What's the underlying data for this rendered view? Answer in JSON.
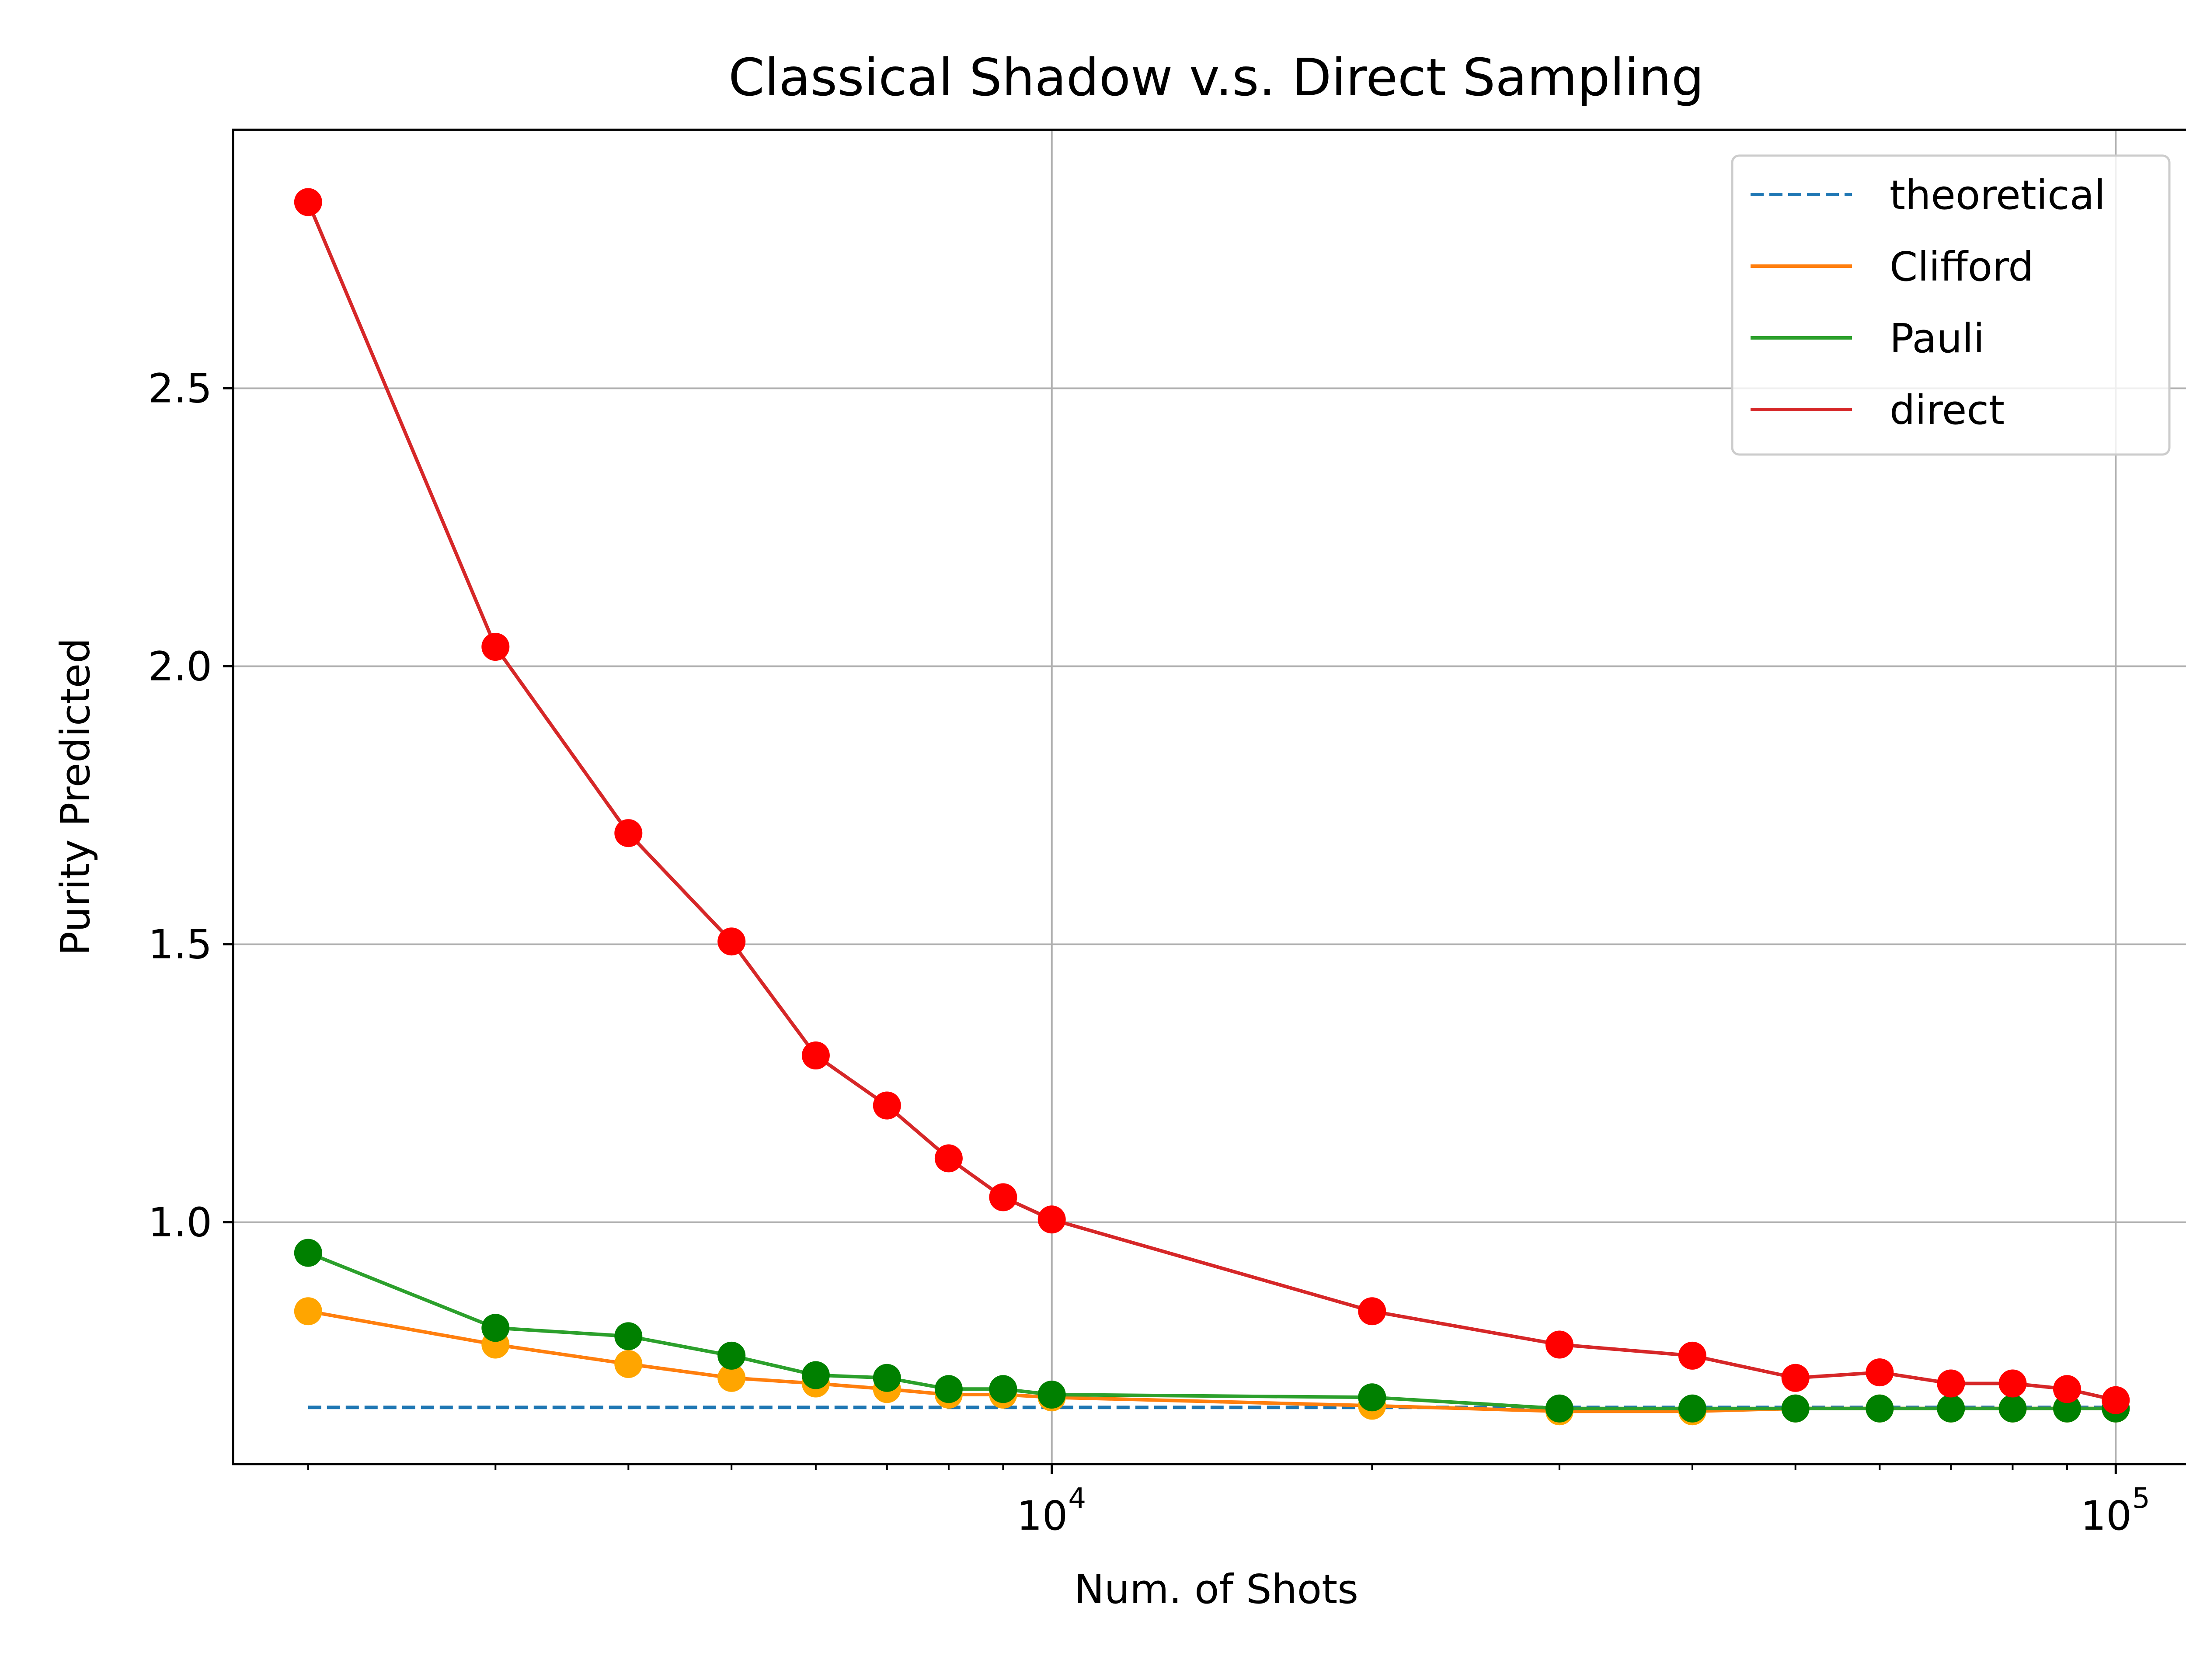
{
  "chart_data": {
    "type": "line",
    "title": "Classical Shadow v.s. Direct Sampling",
    "xlabel": "Num. of Shots",
    "ylabel": "Purity Predicted",
    "x_scale": "log",
    "xlim": [
      1700,
      120000
    ],
    "ylim": [
      0.565,
      2.965
    ],
    "x_major_ticks": [
      {
        "value": 10000,
        "base": "10",
        "exp": "4"
      },
      {
        "value": 100000,
        "base": "10",
        "exp": "5"
      }
    ],
    "x_minor_ticks": [
      2000,
      3000,
      4000,
      5000,
      6000,
      7000,
      8000,
      9000,
      20000,
      30000,
      40000,
      50000,
      60000,
      70000,
      80000,
      90000
    ],
    "y_ticks": [
      {
        "value": 1.0,
        "label": "1.0"
      },
      {
        "value": 1.5,
        "label": "1.5"
      },
      {
        "value": 2.0,
        "label": "2.0"
      },
      {
        "value": 2.5,
        "label": "2.5"
      }
    ],
    "grid": true,
    "legend_position": "top-right",
    "x": [
      2000,
      3000,
      4000,
      5000,
      6000,
      7000,
      8000,
      9000,
      10000,
      20000,
      30000,
      40000,
      50000,
      60000,
      70000,
      80000,
      90000,
      100000
    ],
    "series": [
      {
        "name": "theoretical",
        "color": "#1f77b4",
        "dash": true,
        "markers": false,
        "values": [
          0.667,
          0.667,
          0.667,
          0.667,
          0.667,
          0.667,
          0.667,
          0.667,
          0.667,
          0.667,
          0.667,
          0.667,
          0.667,
          0.667,
          0.667,
          0.667,
          0.667,
          0.667
        ]
      },
      {
        "name": "Clifford",
        "color": "#ff7f0e",
        "marker_color": "#ffa500",
        "dash": false,
        "markers": true,
        "values": [
          0.84,
          0.78,
          0.745,
          0.72,
          0.71,
          0.7,
          0.69,
          0.69,
          0.685,
          0.67,
          0.66,
          0.66,
          0.665,
          0.665,
          0.665,
          0.665,
          0.665,
          0.665
        ]
      },
      {
        "name": "Pauli",
        "color": "#2ca02c",
        "marker_color": "#008000",
        "dash": false,
        "markers": true,
        "values": [
          0.945,
          0.81,
          0.795,
          0.76,
          0.725,
          0.72,
          0.7,
          0.7,
          0.69,
          0.685,
          0.665,
          0.665,
          0.665,
          0.665,
          0.665,
          0.665,
          0.665,
          0.665
        ]
      },
      {
        "name": "direct",
        "color": "#d62728",
        "marker_color": "#ff0000",
        "dash": false,
        "markers": true,
        "values": [
          2.835,
          2.035,
          1.7,
          1.505,
          1.3,
          1.21,
          1.115,
          1.045,
          1.005,
          0.84,
          0.78,
          0.76,
          0.72,
          0.73,
          0.71,
          0.71,
          0.7,
          0.68
        ]
      }
    ]
  }
}
